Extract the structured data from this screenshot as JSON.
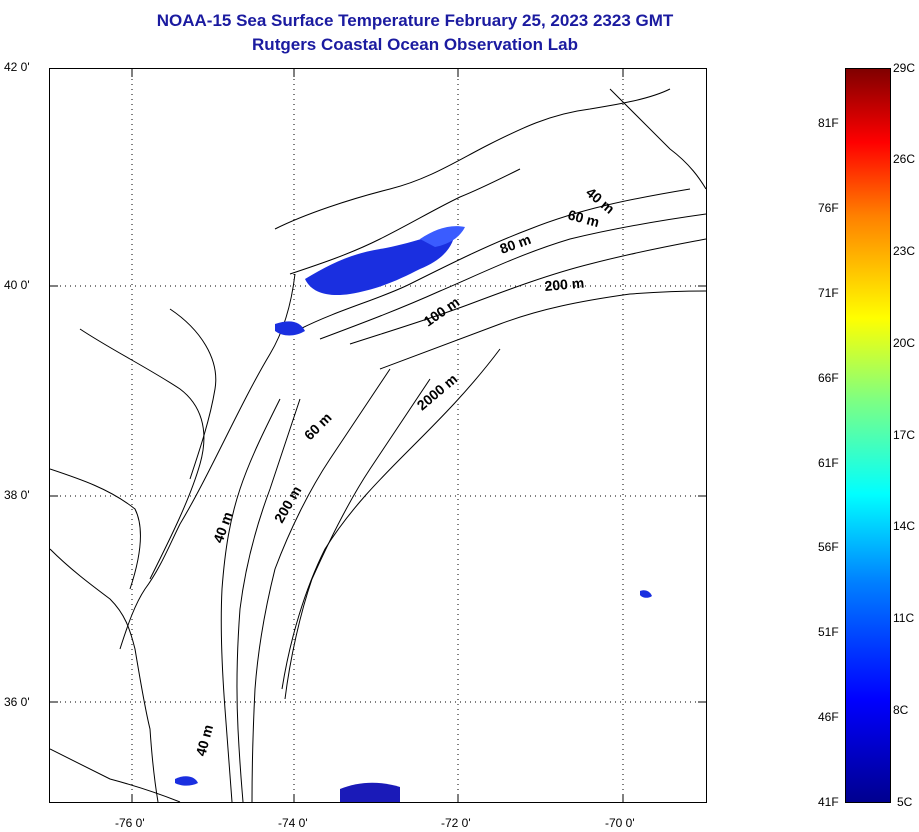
{
  "title": {
    "line1": "NOAA-15 Sea Surface Temperature February 25, 2023 2323 GMT",
    "line2": "Rutgers Coastal Ocean Observation Lab"
  },
  "map": {
    "lat_labels": [
      "42 0'",
      "40 0'",
      "38 0'",
      "36 0'"
    ],
    "lon_labels": [
      "-76 0'",
      "-74 0'",
      "-72 0'",
      "-70 0'"
    ],
    "contour_labels": [
      "40 m",
      "60 m",
      "80 m",
      "200 m",
      "100 m",
      "2000 m",
      "60 m",
      "200 m",
      "40 m",
      "40 m"
    ]
  },
  "colorbar": {
    "celsius_labels": [
      "29C",
      "26C",
      "23C",
      "20C",
      "17C",
      "14C",
      "11C",
      "8C",
      "5C"
    ],
    "fahrenheit_labels": [
      "81F",
      "76F",
      "71F",
      "66F",
      "61F",
      "56F",
      "51F",
      "46F",
      "41F"
    ],
    "colors": [
      "#00008f",
      "#0000ff",
      "#0080ff",
      "#00ffff",
      "#80ff80",
      "#ffff00",
      "#ff8000",
      "#ff0000",
      "#800000"
    ]
  }
}
